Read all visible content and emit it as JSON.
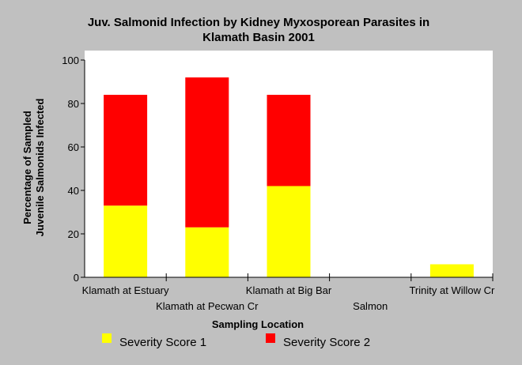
{
  "chart_data": {
    "type": "bar",
    "stacked": true,
    "title": "Juv. Salmonid Infection by Kidney Myxosporean Parasites in Klamath Basin 2001",
    "title_lines": [
      "Juv. Salmonid Infection by Kidney Myxosporean Parasites in",
      "Klamath Basin 2001"
    ],
    "xlabel": "Sampling Location",
    "ylabel_lines": [
      "Percentage of Sampled",
      "Juvenile Salmonids Infected"
    ],
    "ylim": [
      0,
      100
    ],
    "yticks": [
      0,
      20,
      40,
      60,
      80,
      100
    ],
    "categories": [
      "Klamath at Estuary",
      "Klamath at  Pecwan Cr",
      "Klamath at  Big Bar",
      "Salmon",
      "Trinity at Willow Cr"
    ],
    "series": [
      {
        "name": "Severity Score 1",
        "color": "#ffff00",
        "values": [
          33,
          23,
          42,
          0,
          6
        ]
      },
      {
        "name": "Severity Score 2",
        "color": "#ff0000",
        "values": [
          51,
          69,
          42,
          0,
          0
        ]
      }
    ],
    "grid": false,
    "legend_position": "bottom",
    "colors": {
      "background": "#c0c0c0",
      "plot_background": "#ffffff"
    }
  }
}
